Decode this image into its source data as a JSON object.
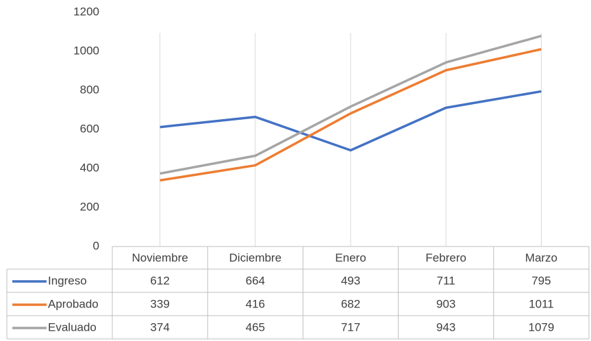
{
  "chart_data": {
    "type": "line",
    "categories": [
      "Noviembre",
      "Diciembre",
      "Enero",
      "Febrero",
      "Marzo"
    ],
    "series": [
      {
        "name": "Ingreso",
        "color": "#4472c4",
        "values": [
          612,
          664,
          493,
          711,
          795
        ]
      },
      {
        "name": "Aprobado",
        "color": "#ed7d31",
        "values": [
          339,
          416,
          682,
          903,
          1011
        ]
      },
      {
        "name": "Evaluado",
        "color": "#a5a5a5",
        "values": [
          374,
          465,
          717,
          943,
          1079
        ]
      }
    ],
    "ylim": [
      0,
      1200
    ],
    "yticks": [
      0,
      200,
      400,
      600,
      800,
      1000,
      1200
    ],
    "data_table": true
  }
}
